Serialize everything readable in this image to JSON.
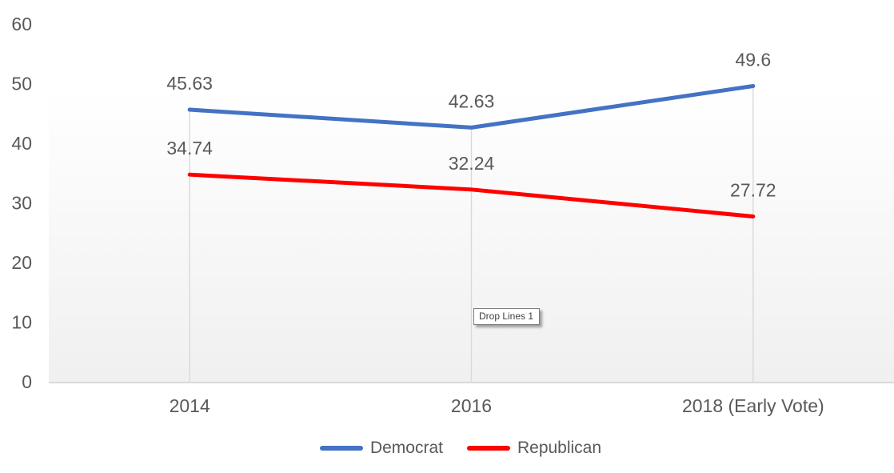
{
  "chart_data": {
    "type": "line",
    "title": "",
    "xlabel": "",
    "ylabel": "",
    "categories": [
      "2014",
      "2016",
      "2018 (Early Vote)"
    ],
    "series": [
      {
        "name": "Democrat",
        "color": "#4472C4",
        "values": [
          45.63,
          42.63,
          49.6
        ],
        "labels": [
          "45.63",
          "42.63",
          "49.6"
        ]
      },
      {
        "name": "Republican",
        "color": "#FF0000",
        "values": [
          34.74,
          32.24,
          27.72
        ],
        "labels": [
          "34.74",
          "32.24",
          "27.72"
        ]
      }
    ],
    "y_ticks": [
      0,
      10,
      20,
      30,
      40,
      50,
      60
    ],
    "ylim": [
      0,
      60
    ],
    "grid": false,
    "drop_lines": true,
    "legend_position": "bottom"
  },
  "tooltip": {
    "label": "Drop Lines 1"
  },
  "style": {
    "axis_text_color": "#595959",
    "data_label_color": "#595959",
    "axis_line_color": "#d9d9d9",
    "drop_line_color": "#d9d9d9",
    "plot_bg_top": "#ffffff",
    "plot_bg_bottom": "#f0f0f0"
  }
}
